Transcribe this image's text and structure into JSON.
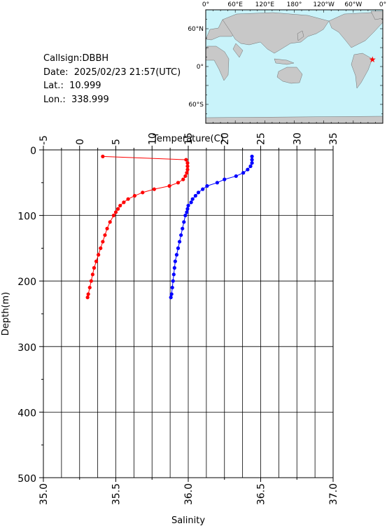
{
  "info": {
    "callsign": "Callsign:DBBH",
    "date": "Date:  2025/02/23 21:57(UTC)",
    "lat": "Lat.:  10.999",
    "lon": "Lon.:  338.999"
  },
  "map": {
    "lon_labels": [
      "0°",
      "60°E",
      "120°E",
      "180°",
      "120°W",
      "60°W",
      "0°"
    ],
    "lat_labels": [
      "60°N",
      "0°",
      "60°S"
    ],
    "ocean_color": "#c9f3fa",
    "land_color": "#c8c8c8",
    "marker_color": "#ff0000",
    "marker_lat": 10.999,
    "marker_lon": 338.999
  },
  "chart_data": {
    "type": "line",
    "ylabel": "Depth(m)",
    "ylim": [
      500,
      0
    ],
    "yticks": [
      "0",
      "100",
      "200",
      "300",
      "400",
      "500"
    ],
    "x_top": {
      "label": "Temperature(C)",
      "lim": [
        -5,
        35
      ],
      "ticks": [
        "-5",
        "0",
        "5",
        "10",
        "15",
        "20",
        "25",
        "30",
        "35"
      ]
    },
    "x_bottom": {
      "label": "Salinity",
      "lim": [
        35.0,
        37.0
      ],
      "ticks": [
        "35.0",
        "35.5",
        "36.0",
        "36.5",
        "37.0"
      ]
    },
    "grid": true,
    "series": [
      {
        "quantity": "temperature",
        "axis": "top",
        "color": "#ff0000",
        "depth": [
          10,
          15,
          20,
          25,
          30,
          35,
          40,
          45,
          50,
          55,
          60,
          65,
          70,
          75,
          80,
          85,
          90,
          95,
          100,
          110,
          120,
          130,
          140,
          150,
          160,
          170,
          180,
          190,
          200,
          210,
          220,
          225
        ],
        "values": [
          3.2,
          14.7,
          14.9,
          14.9,
          14.9,
          14.8,
          14.6,
          14.3,
          13.6,
          12.4,
          10.3,
          8.7,
          7.6,
          6.7,
          6.1,
          5.6,
          5.3,
          5.0,
          4.7,
          4.2,
          3.8,
          3.5,
          3.2,
          2.9,
          2.6,
          2.3,
          2.0,
          1.8,
          1.6,
          1.4,
          1.2,
          1.1
        ]
      },
      {
        "quantity": "salinity",
        "axis": "bottom",
        "color": "#0000ff",
        "depth": [
          10,
          15,
          20,
          25,
          30,
          35,
          40,
          45,
          50,
          55,
          60,
          65,
          70,
          75,
          80,
          85,
          90,
          95,
          100,
          110,
          120,
          130,
          140,
          150,
          160,
          170,
          180,
          190,
          200,
          210,
          220,
          225
        ],
        "values": [
          36.44,
          36.44,
          36.44,
          36.43,
          36.41,
          36.38,
          36.33,
          36.25,
          36.2,
          36.13,
          36.1,
          36.07,
          36.05,
          36.03,
          36.02,
          36.0,
          35.995,
          35.99,
          35.98,
          35.97,
          35.96,
          35.95,
          35.94,
          35.93,
          35.92,
          35.91,
          35.905,
          35.9,
          35.895,
          35.89,
          35.885,
          35.88
        ]
      }
    ]
  }
}
